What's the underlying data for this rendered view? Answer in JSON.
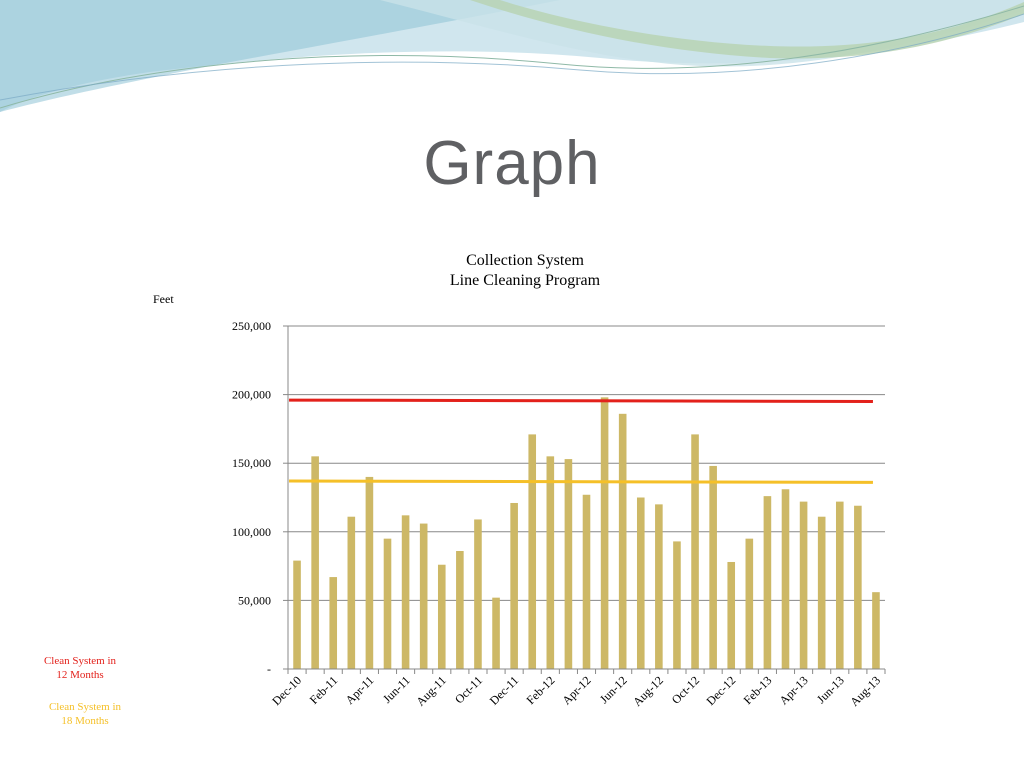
{
  "slide": {
    "title": "Graph"
  },
  "colors": {
    "bar": "#cdb866",
    "line_12_months": "#e3211b",
    "line_18_months": "#f5c028",
    "grid": "#888888",
    "wave_blue": "#a9d2e0",
    "wave_green": "#b9d3b4"
  },
  "chart_data": {
    "type": "bar",
    "title_line1": "Collection System",
    "title_line2": "Line Cleaning Program",
    "ylabel": "Feet",
    "ylim": [
      0,
      250000
    ],
    "yticks": [
      0,
      50000,
      100000,
      150000,
      200000,
      250000
    ],
    "ytick_labels": [
      "-",
      "50,000",
      "100,000",
      "150,000",
      "200,000",
      "250,000"
    ],
    "grid": true,
    "categories": [
      "Dec-10",
      "Jan-11",
      "Feb-11",
      "Mar-11",
      "Apr-11",
      "May-11",
      "Jun-11",
      "Jul-11",
      "Aug-11",
      "Sep-11",
      "Oct-11",
      "Nov-11",
      "Dec-11",
      "Jan-12",
      "Feb-12",
      "Mar-12",
      "Apr-12",
      "May-12",
      "Jun-12",
      "Jul-12",
      "Aug-12",
      "Sep-12",
      "Oct-12",
      "Nov-12",
      "Dec-12",
      "Jan-13",
      "Feb-13",
      "Mar-13",
      "Apr-13",
      "May-13",
      "Jun-13",
      "Jul-13",
      "Aug-13"
    ],
    "xtick_labels": [
      "Dec-10",
      "Feb-11",
      "Apr-11",
      "Jun-11",
      "Aug-11",
      "Oct-11",
      "Dec-11",
      "Feb-12",
      "Apr-12",
      "Jun-12",
      "Aug-12",
      "Oct-12",
      "Dec-12",
      "Feb-13",
      "Apr-13",
      "Jun-13",
      "Aug-13"
    ],
    "series": [
      {
        "values": [
          79000,
          155000,
          67000,
          111000,
          140000,
          95000,
          112000,
          106000,
          76000,
          86000,
          109000,
          52000,
          121000,
          171000,
          155000,
          153000,
          127000,
          198000,
          186000,
          125000,
          120000,
          93000,
          171000,
          148000,
          78000,
          95000,
          126000,
          131000,
          122000,
          111000,
          122000,
          119000,
          56000
        ]
      }
    ],
    "reference_lines": [
      {
        "name": "Clean System in 12 Months",
        "label_line1": "Clean System in",
        "label_line2": "12 Months",
        "start": 196000,
        "end": 195000
      },
      {
        "name": "Clean System in 18 Months",
        "label_line1": "Clean System in",
        "label_line2": "18 Months",
        "start": 137000,
        "end": 136000
      }
    ]
  }
}
